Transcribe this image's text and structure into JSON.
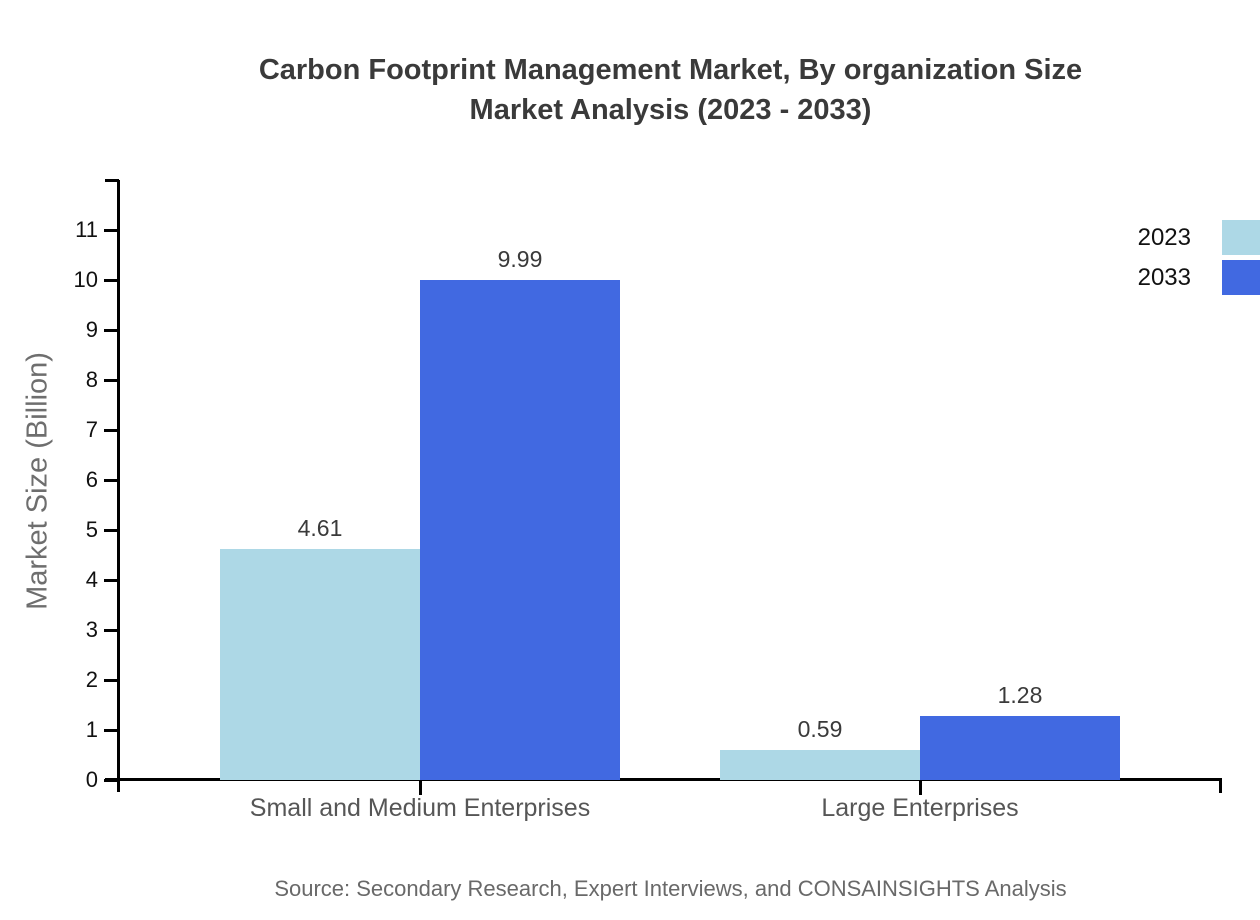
{
  "title": {
    "line1": "Carbon Footprint Management Market, By organization Size",
    "line2": "Market Analysis (2023 - 2033)"
  },
  "source": "Source: Secondary Research, Expert Interviews, and CONSAINSIGHTS Analysis",
  "colors": {
    "series_2023": "#ADD8E6",
    "series_2033": "#4169E1",
    "title_text": "#3a3a3a",
    "axis_line": "#000000",
    "tick_label": "#111111",
    "category_label": "#565656",
    "value_label": "#3a3a3a",
    "muted_text": "#6e6e6e"
  },
  "legend": {
    "position": "top-right",
    "items": [
      {
        "label": "2023",
        "color": "#ADD8E6"
      },
      {
        "label": "2033",
        "color": "#4169E1"
      }
    ]
  },
  "chart_data": {
    "type": "bar",
    "title": "Carbon Footprint Management Market, By organization Size Market Analysis (2023 - 2033)",
    "categories": [
      "Small and Medium Enterprises",
      "Large Enterprises"
    ],
    "series": [
      {
        "name": "2023",
        "color": "#ADD8E6",
        "values": [
          4.61,
          0.59
        ]
      },
      {
        "name": "2033",
        "color": "#4169E1",
        "values": [
          9.99,
          1.28
        ]
      }
    ],
    "xlabel": "",
    "ylabel": "Market Size (Billion)",
    "ylim": [
      0,
      12
    ],
    "yticks": [
      0,
      1,
      2,
      3,
      4,
      5,
      6,
      7,
      8,
      9,
      10,
      11
    ],
    "grid": false,
    "value_labels": true,
    "legend_position": "right-top"
  }
}
